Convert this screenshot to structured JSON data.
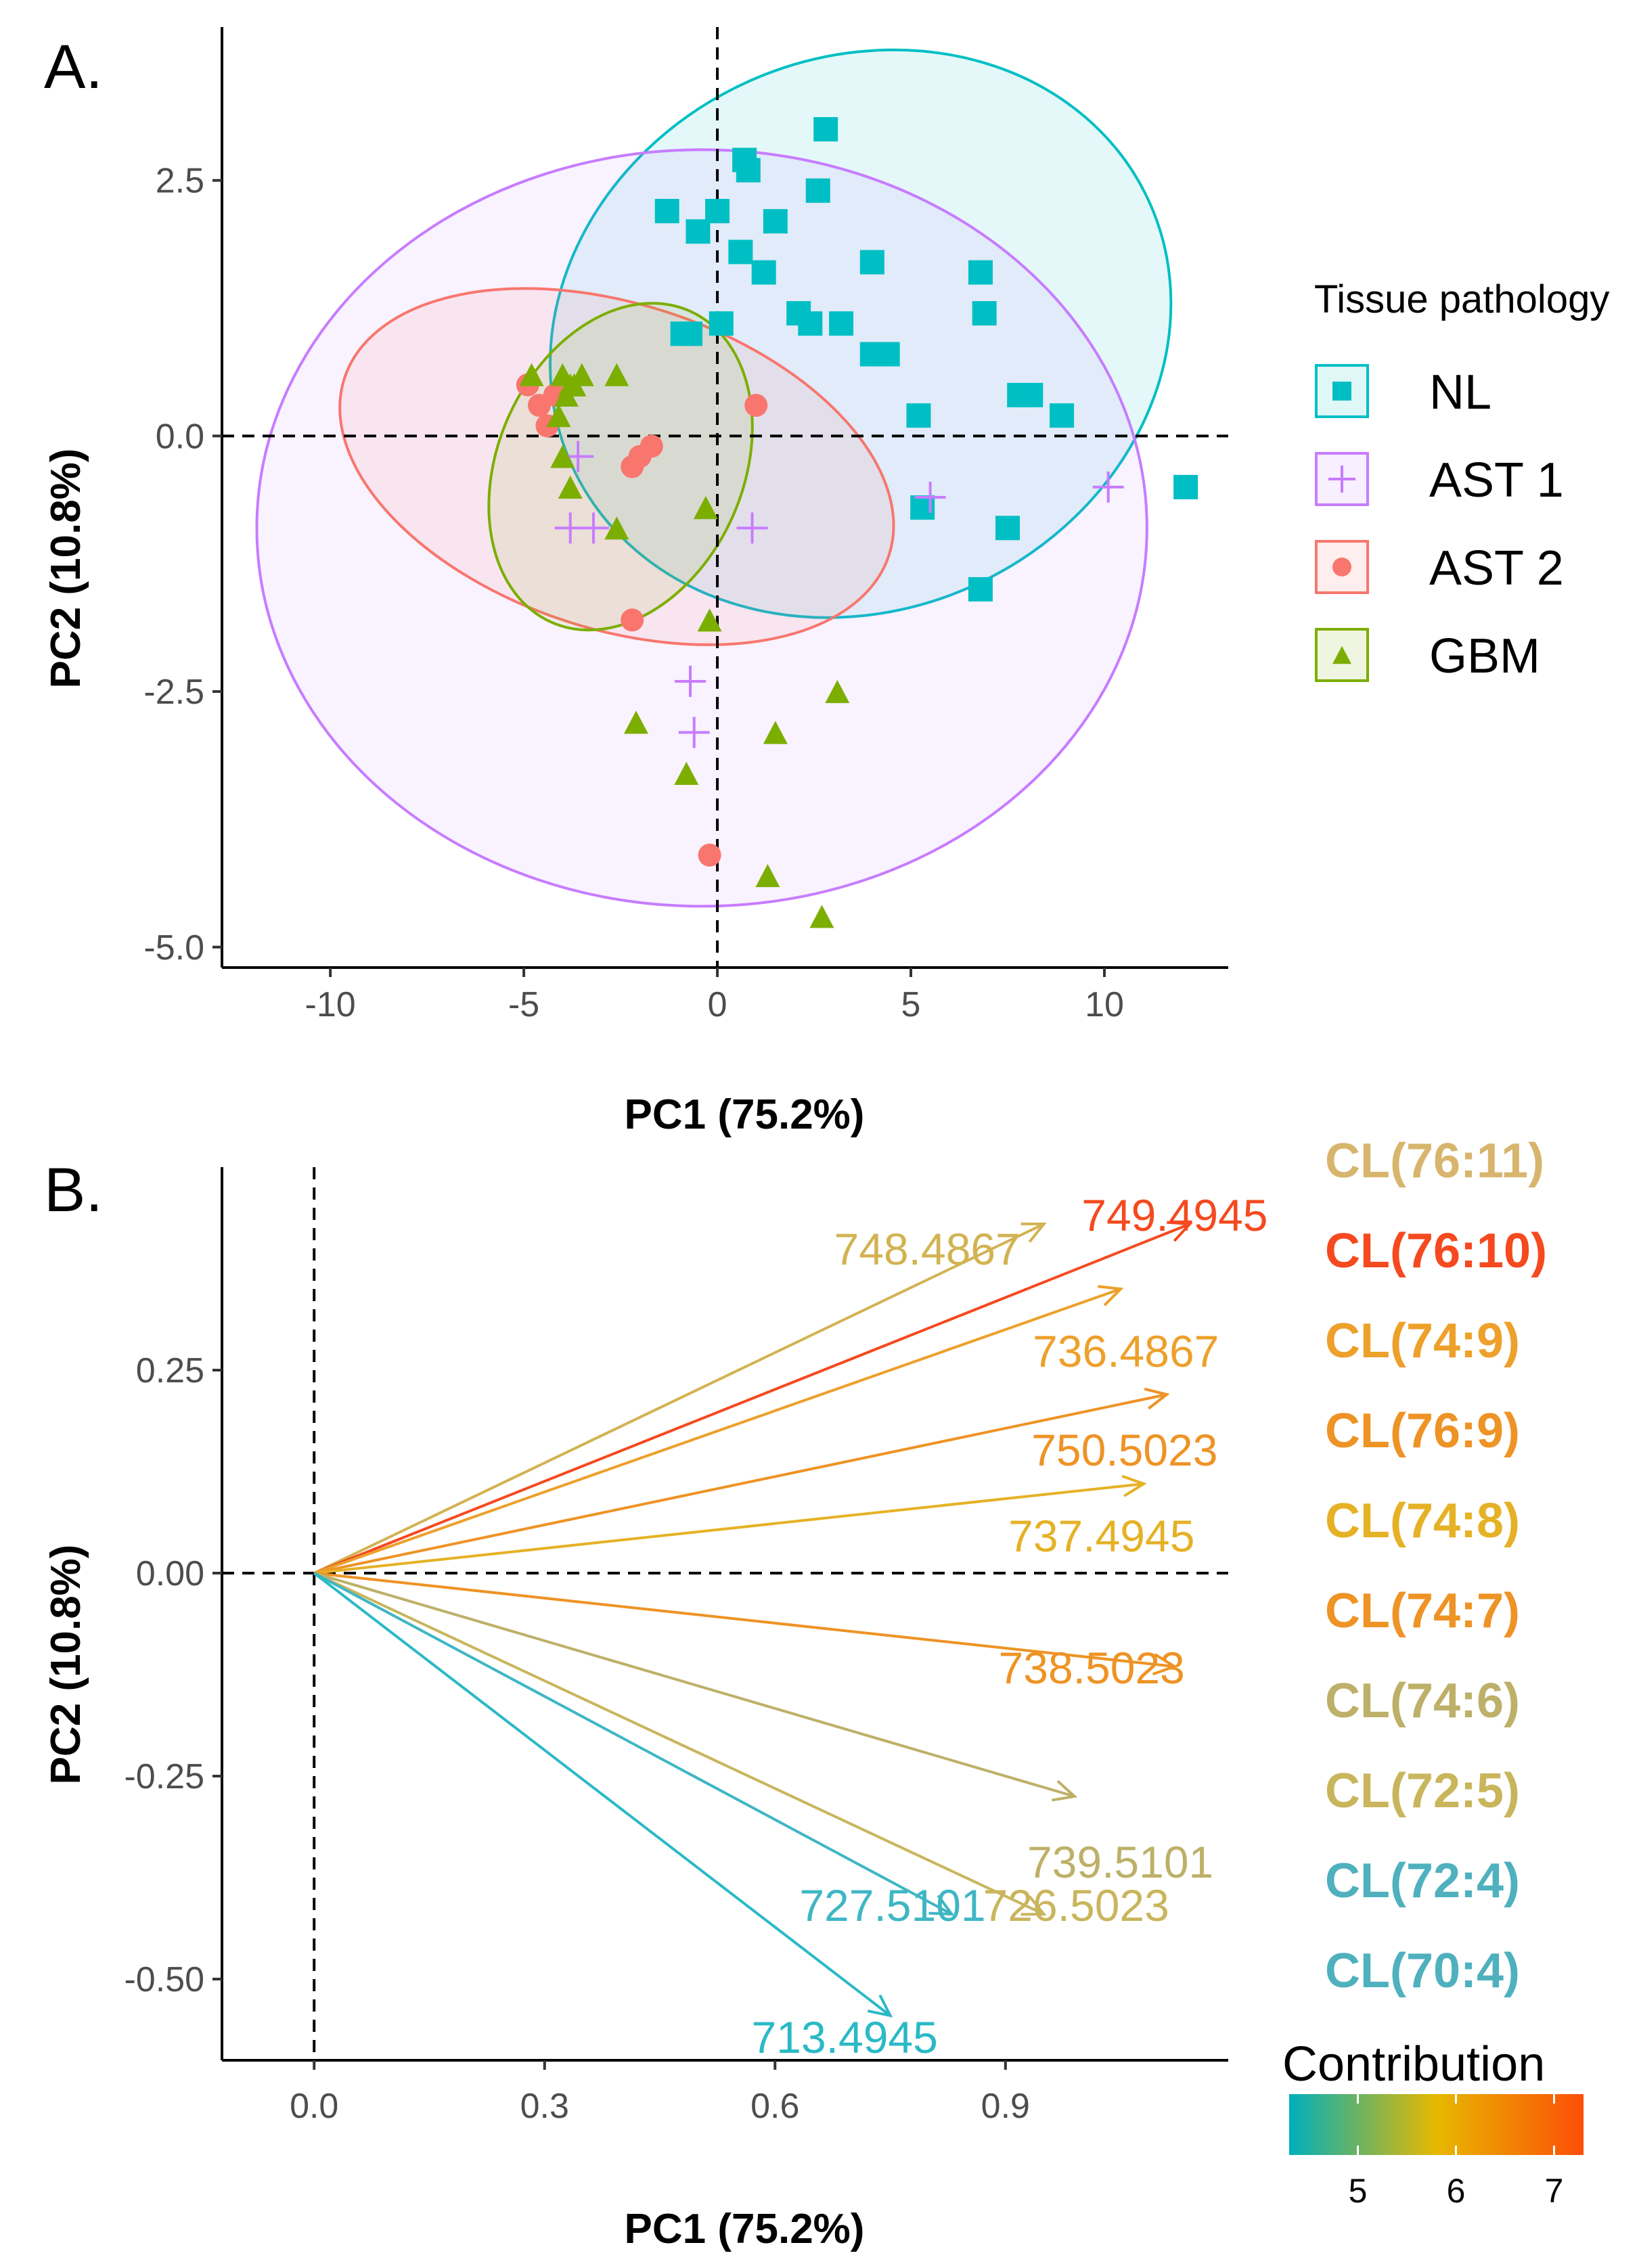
{
  "chart_data": [
    {
      "type": "scatter",
      "panel_label": "A.",
      "xlabel": "PC1 (75.2%)",
      "ylabel": "PC2 (10.8%)",
      "xlim": [
        -12.8,
        13.2
      ],
      "ylim": [
        -5.2,
        4.0
      ],
      "xticks": [
        {
          "v": -10,
          "label": "-10"
        },
        {
          "v": -5,
          "label": "-5"
        },
        {
          "v": 0,
          "label": "0"
        },
        {
          "v": 5,
          "label": "5"
        },
        {
          "v": 10,
          "label": "10"
        }
      ],
      "yticks": [
        {
          "v": 2.5,
          "label": "2.5"
        },
        {
          "v": 0.0,
          "label": "0.0"
        },
        {
          "v": -2.5,
          "label": "-2.5"
        },
        {
          "v": -5.0,
          "label": "-5.0"
        }
      ],
      "legend": {
        "title": "Tissue pathology",
        "entries": [
          {
            "name": "NL",
            "color": "#00BFC4",
            "shape": "square"
          },
          {
            "name": "AST 1",
            "color": "#C77CFF",
            "shape": "plus"
          },
          {
            "name": "AST 2",
            "color": "#F8766D",
            "shape": "circle"
          },
          {
            "name": "GBM",
            "color": "#7CAE00",
            "shape": "triangle"
          }
        ]
      },
      "series": [
        {
          "name": "NL",
          "ellipse": {
            "cx": 3.7,
            "cy": 1.0,
            "rx": 8.2,
            "ry": 2.7,
            "angle": -25
          },
          "points": [
            [
              -1.3,
              2.2
            ],
            [
              -0.5,
              2.0
            ],
            [
              0,
              2.2
            ],
            [
              0.7,
              2.7
            ],
            [
              0.8,
              2.6
            ],
            [
              1.5,
              2.1
            ],
            [
              2.6,
              2.4
            ],
            [
              2.8,
              3.0
            ],
            [
              0.6,
              1.8
            ],
            [
              1.2,
              1.6
            ],
            [
              2.1,
              1.2
            ],
            [
              2.4,
              1.1
            ],
            [
              3.2,
              1.1
            ],
            [
              4.0,
              1.7
            ],
            [
              6.8,
              1.6
            ],
            [
              6.9,
              1.2
            ],
            [
              -0.7,
              1.0
            ],
            [
              -0.9,
              1.0
            ],
            [
              0.1,
              1.1
            ],
            [
              4.0,
              0.8
            ],
            [
              4.4,
              0.8
            ],
            [
              7.8,
              0.4
            ],
            [
              8.1,
              0.4
            ],
            [
              5.2,
              0.2
            ],
            [
              8.9,
              0.2
            ],
            [
              5.3,
              -0.7
            ],
            [
              7.5,
              -0.9
            ],
            [
              6.8,
              -1.5
            ],
            [
              12.1,
              -0.5
            ]
          ]
        },
        {
          "name": "AST 1",
          "ellipse": {
            "cx": -0.4,
            "cy": -0.9,
            "rx": 11.5,
            "ry": 3.7,
            "angle": 0
          },
          "points": [
            [
              -3.6,
              -0.2
            ],
            [
              -3.8,
              -0.9
            ],
            [
              -3.2,
              -0.9
            ],
            [
              0.9,
              -0.9
            ],
            [
              5.5,
              -0.6
            ],
            [
              10.1,
              -0.5
            ],
            [
              -0.7,
              -2.4
            ],
            [
              -0.6,
              -2.9
            ]
          ]
        },
        {
          "name": "AST 2",
          "ellipse": {
            "cx": -2.6,
            "cy": -0.3,
            "rx": 4.2,
            "ry": 2.8,
            "angle": -72
          },
          "points": [
            [
              -4.9,
              0.5
            ],
            [
              -4.6,
              0.3
            ],
            [
              -4.4,
              0.1
            ],
            [
              -4.2,
              0.4
            ],
            [
              -1.7,
              -0.1
            ],
            [
              -2.0,
              -0.2
            ],
            [
              -2.2,
              -0.3
            ],
            [
              1.0,
              0.3
            ],
            [
              -2.2,
              -1.8
            ],
            [
              -0.2,
              -4.1
            ]
          ]
        },
        {
          "name": "GBM",
          "ellipse": {
            "cx": -2.5,
            "cy": -0.3,
            "rx": 4.4,
            "ry": 1.2,
            "angle": -66
          },
          "points": [
            [
              -4.8,
              0.6
            ],
            [
              -4.0,
              0.6
            ],
            [
              -3.8,
              0.5
            ],
            [
              -3.9,
              0.4
            ],
            [
              -3.7,
              0.5
            ],
            [
              -3.5,
              0.6
            ],
            [
              -2.6,
              0.6
            ],
            [
              -4.1,
              0.2
            ],
            [
              -4.0,
              -0.2
            ],
            [
              -3.8,
              -0.5
            ],
            [
              -2.6,
              -0.9
            ],
            [
              -0.3,
              -0.7
            ],
            [
              -0.2,
              -1.8
            ],
            [
              -2.1,
              -2.8
            ],
            [
              -0.8,
              -3.3
            ],
            [
              1.5,
              -2.9
            ],
            [
              3.1,
              -2.5
            ],
            [
              1.3,
              -4.3
            ],
            [
              2.7,
              -4.7
            ]
          ]
        }
      ]
    },
    {
      "type": "line",
      "panel_label": "B.",
      "xlabel": "PC1 (75.2%)",
      "ylabel": "PC2 (10.8%)",
      "xlim": [
        -0.12,
        1.19
      ],
      "ylim": [
        -0.6,
        0.5
      ],
      "xticks": [
        {
          "v": 0.0,
          "label": "0.0"
        },
        {
          "v": 0.3,
          "label": "0.3"
        },
        {
          "v": 0.6,
          "label": "0.6"
        },
        {
          "v": 0.9,
          "label": "0.9"
        }
      ],
      "yticks": [
        {
          "v": 0.25,
          "label": "0.25"
        },
        {
          "v": 0.0,
          "label": "0.00"
        },
        {
          "v": -0.25,
          "label": "-0.25"
        },
        {
          "v": -0.5,
          "label": "-0.50"
        }
      ],
      "arrows": [
        {
          "label": "748.4867",
          "x": 0.95,
          "y": 0.43,
          "color": "#D2B352"
        },
        {
          "label": "749.4945",
          "x": 1.14,
          "y": 0.43,
          "color": "#F5491F"
        },
        {
          "label": "736.4867",
          "x": 1.05,
          "y": 0.35,
          "color": "#EDA02A"
        },
        {
          "label": "750.5023",
          "x": 1.11,
          "y": 0.22,
          "color": "#EE9325"
        },
        {
          "label": "737.4945",
          "x": 1.08,
          "y": 0.11,
          "color": "#E5B125"
        },
        {
          "label": "738.5023",
          "x": 1.12,
          "y": -0.115,
          "color": "#EE9325"
        },
        {
          "label": "739.5101",
          "x": 0.99,
          "y": -0.275,
          "color": "#BDB068"
        },
        {
          "label": "726.5023",
          "x": 0.95,
          "y": -0.42,
          "color": "#C9B55C"
        },
        {
          "label": "727.5101",
          "x": 0.83,
          "y": -0.42,
          "color": "#3EB6C4"
        },
        {
          "label": "713.4945",
          "x": 0.75,
          "y": -0.545,
          "color": "#2AB9C6"
        }
      ],
      "cl_labels": [
        {
          "label": "CL(76:11)",
          "color": "#D7B56D"
        },
        {
          "label": "CL(76:10)",
          "color": "#F5491F"
        },
        {
          "label": "CL(74:9)",
          "color": "#EDA02A"
        },
        {
          "label": "CL(76:9)",
          "color": "#EE9325"
        },
        {
          "label": "CL(74:8)",
          "color": "#E5B125"
        },
        {
          "label": "CL(74:7)",
          "color": "#EE9325"
        },
        {
          "label": "CL(74:6)",
          "color": "#BDB068"
        },
        {
          "label": "CL(72:5)",
          "color": "#C9B55C"
        },
        {
          "label": "CL(72:4)",
          "color": "#4FB0BE"
        },
        {
          "label": "CL(70:4)",
          "color": "#4FB0BE"
        }
      ],
      "colorbar": {
        "title": "Contribution",
        "min": 4.3,
        "max": 7.3,
        "ticks": [
          {
            "v": 5,
            "label": "5"
          },
          {
            "v": 6,
            "label": "6"
          },
          {
            "v": 7,
            "label": "7"
          }
        ],
        "colors": [
          "#00AFBB",
          "#E7B800",
          "#FC4E07"
        ]
      }
    }
  ]
}
